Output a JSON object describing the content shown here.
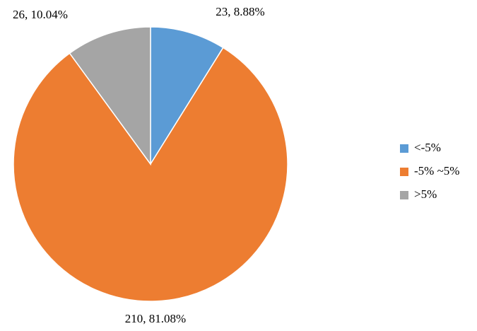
{
  "chart_data": {
    "type": "pie",
    "categories": [
      "<-5%",
      "-5% ~5%",
      ">5%"
    ],
    "values": [
      23,
      210,
      26
    ],
    "value_labels": [
      "23, 8.88%",
      "210, 81.08%",
      "26, 10.04%"
    ],
    "colors": [
      "#5b9bd5",
      "#ed7d31",
      "#a5a5a5"
    ],
    "legend": "right"
  }
}
